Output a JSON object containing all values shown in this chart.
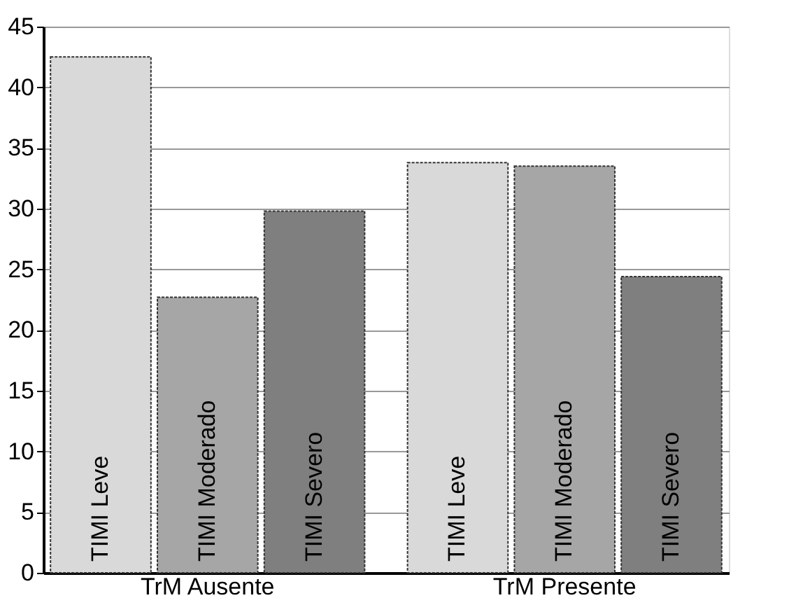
{
  "chart_data": {
    "type": "bar",
    "categories": [
      "TrM Ausente",
      "TrM Presente"
    ],
    "series": [
      {
        "name": "TIMI Leve",
        "color": "#d9d9d9",
        "values": [
          42.5,
          33.8
        ]
      },
      {
        "name": "TIMI Moderado",
        "color": "#a6a6a6",
        "values": [
          22.7,
          33.5
        ]
      },
      {
        "name": "TIMI Severo",
        "color": "#7f7f7f",
        "values": [
          29.8,
          24.4
        ]
      }
    ],
    "ylim": [
      0,
      45
    ],
    "yticks": [
      0,
      5,
      10,
      15,
      20,
      25,
      30,
      35,
      40,
      45
    ],
    "grid": "y",
    "legend": false
  }
}
